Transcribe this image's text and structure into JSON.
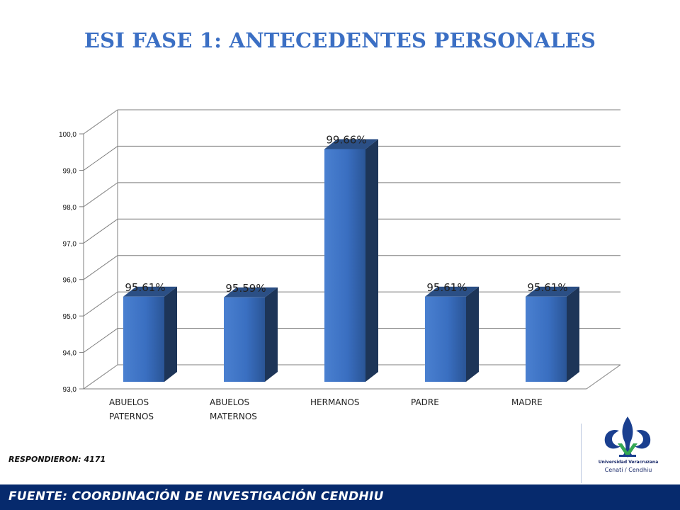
{
  "title": "ESI FASE 1: ANTECEDENTES PERSONALES",
  "respondents_note": "RESPONDIERON: 4171",
  "footer": "FUENTE:  COORDINACIÓN DE   INVESTIGACIÓN CENDHIU",
  "logo": {
    "line1": "Universidad Veracruzana",
    "line2": "Cenati / Cendhiu"
  },
  "colors": {
    "title": "#3b6fc4",
    "bar_front": "#3a6fc1",
    "bar_side": "#1d3558",
    "bar_top": "#2b4f85",
    "footer_bg": "#062a6d"
  },
  "chart_data": {
    "type": "bar",
    "categories": [
      "ABUELOS PATERNOS",
      "ABUELOS MATERNOS",
      "HERMANOS",
      "PADRE",
      "MADRE"
    ],
    "values": [
      95.61,
      95.59,
      99.66,
      95.61,
      95.61
    ],
    "data_labels": [
      "95.61%",
      "95.59%",
      "99.66%",
      "95.61%",
      "95.61%"
    ],
    "y_ticks": [
      "93,0",
      "94,0",
      "95,0",
      "96,0",
      "97,0",
      "98,0",
      "99,0",
      "100,0"
    ],
    "ylim": [
      93,
      100
    ],
    "grid": true,
    "legend": "none",
    "style": "3d"
  }
}
